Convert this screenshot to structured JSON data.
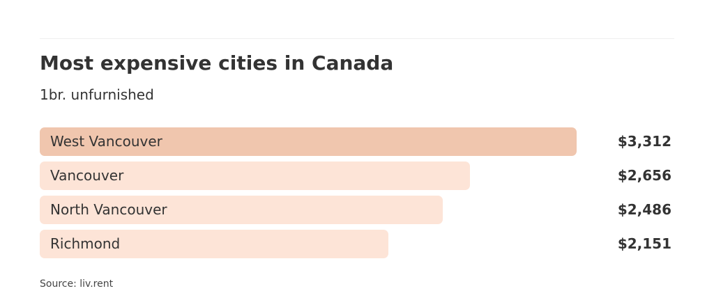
{
  "chart_data": {
    "type": "bar",
    "orientation": "horizontal",
    "title": "Most expensive cities in Canada",
    "subtitle": "1br. unfurnished",
    "categories": [
      "West Vancouver",
      "Vancouver",
      "North Vancouver",
      "Richmond"
    ],
    "values": [
      3312,
      2656,
      2486,
      2151
    ],
    "value_labels": [
      "$3,312",
      "$2,656",
      "$2,486",
      "$2,151"
    ],
    "xlim": [
      0,
      3312
    ],
    "grid": false,
    "legend": "none",
    "colors": {
      "highlight": "#f0c6ae",
      "default": "#fde4d7"
    }
  },
  "source": "Source: liv.rent"
}
